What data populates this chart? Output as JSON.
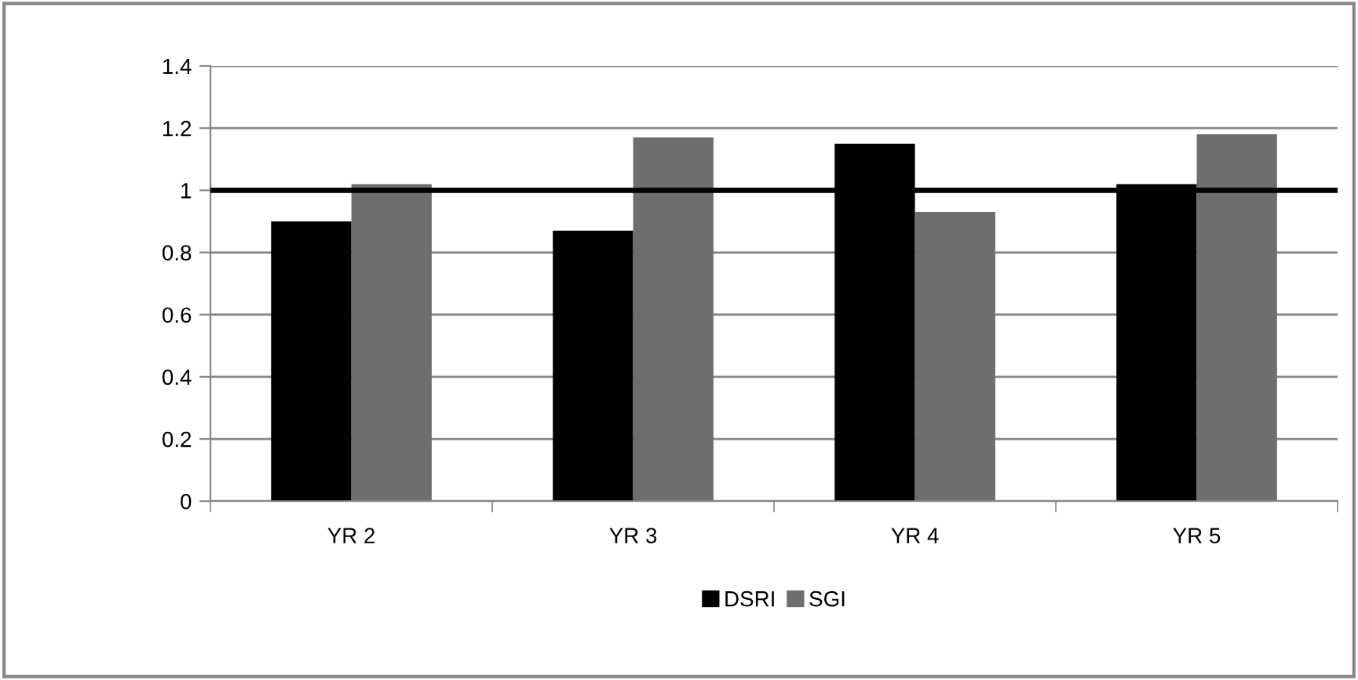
{
  "chart_data": {
    "type": "bar",
    "categories": [
      "YR 2",
      "YR 3",
      "YR 4",
      "YR 5"
    ],
    "series": [
      {
        "name": "DSRI",
        "color": "#000000",
        "values": [
          0.9,
          0.87,
          1.15,
          1.02
        ]
      },
      {
        "name": "SGI",
        "color": "#6e6e6e",
        "values": [
          1.02,
          1.17,
          0.93,
          1.18
        ]
      }
    ],
    "ylim": [
      0,
      1.4
    ],
    "yticks": [
      0,
      0.2,
      0.4,
      0.6,
      0.8,
      1,
      1.2,
      1.4
    ],
    "grid": "y",
    "legend": "bottom",
    "ref_lines": [
      {
        "axis": "y",
        "value": 1,
        "color": "#000000",
        "line_style": "solid"
      }
    ]
  }
}
